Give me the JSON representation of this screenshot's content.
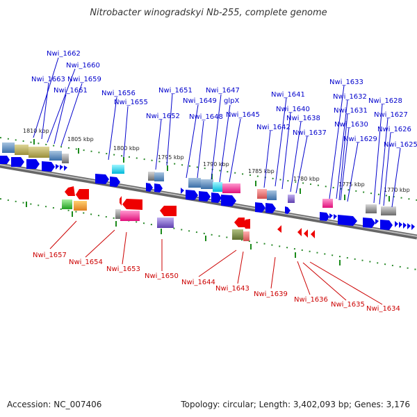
{
  "title": "Nitrobacter winogradskyi Nb-255, complete genome",
  "footer": {
    "accession": "Accession: NC_007406",
    "summary": "Topology: circular; Length: 3,402,093 bp; Genes: 3,176"
  },
  "ruler": [
    "1810 kbp",
    "1805 kbp",
    "1800 kbp",
    "1795 kbp",
    "1790 kbp",
    "1785 kbp",
    "1780 kbp",
    "1775 kbp",
    "1770 kbp"
  ],
  "top_labels": [
    "Nwi_1662",
    "Nwi_1660",
    "Nwi_1663",
    "Nwi_1659",
    "Nwi_1661",
    "Nwi_1656",
    "Nwi_1655",
    "Nwi_1651",
    "Nwi_1652",
    "Nwi_1649",
    "Nwi_1647",
    "glpX",
    "Nwi_1648",
    "Nwi_1645",
    "Nwi_1641",
    "Nwi_1640",
    "Nwi_1638",
    "Nwi_1642",
    "Nwi_1637",
    "Nwi_1633",
    "Nwi_1632",
    "Nwi_1631",
    "Nwi_1630",
    "Nwi_1629",
    "Nwi_1628",
    "Nwi_1627",
    "Nwi_1626",
    "Nwi_1625"
  ],
  "bottom_labels": [
    "Nwi_1657",
    "Nwi_1654",
    "Nwi_1653",
    "Nwi_1650",
    "Nwi_1644",
    "Nwi_1643",
    "Nwi_1639",
    "Nwi_1636",
    "Nwi_1635",
    "Nwi_1634"
  ],
  "colors": {
    "forward_label": "#0000cc",
    "reverse_label": "#cc0000",
    "forward_arrow": "#0000ee",
    "reverse_arrow": "#ee0000",
    "backbone": "#888888"
  }
}
